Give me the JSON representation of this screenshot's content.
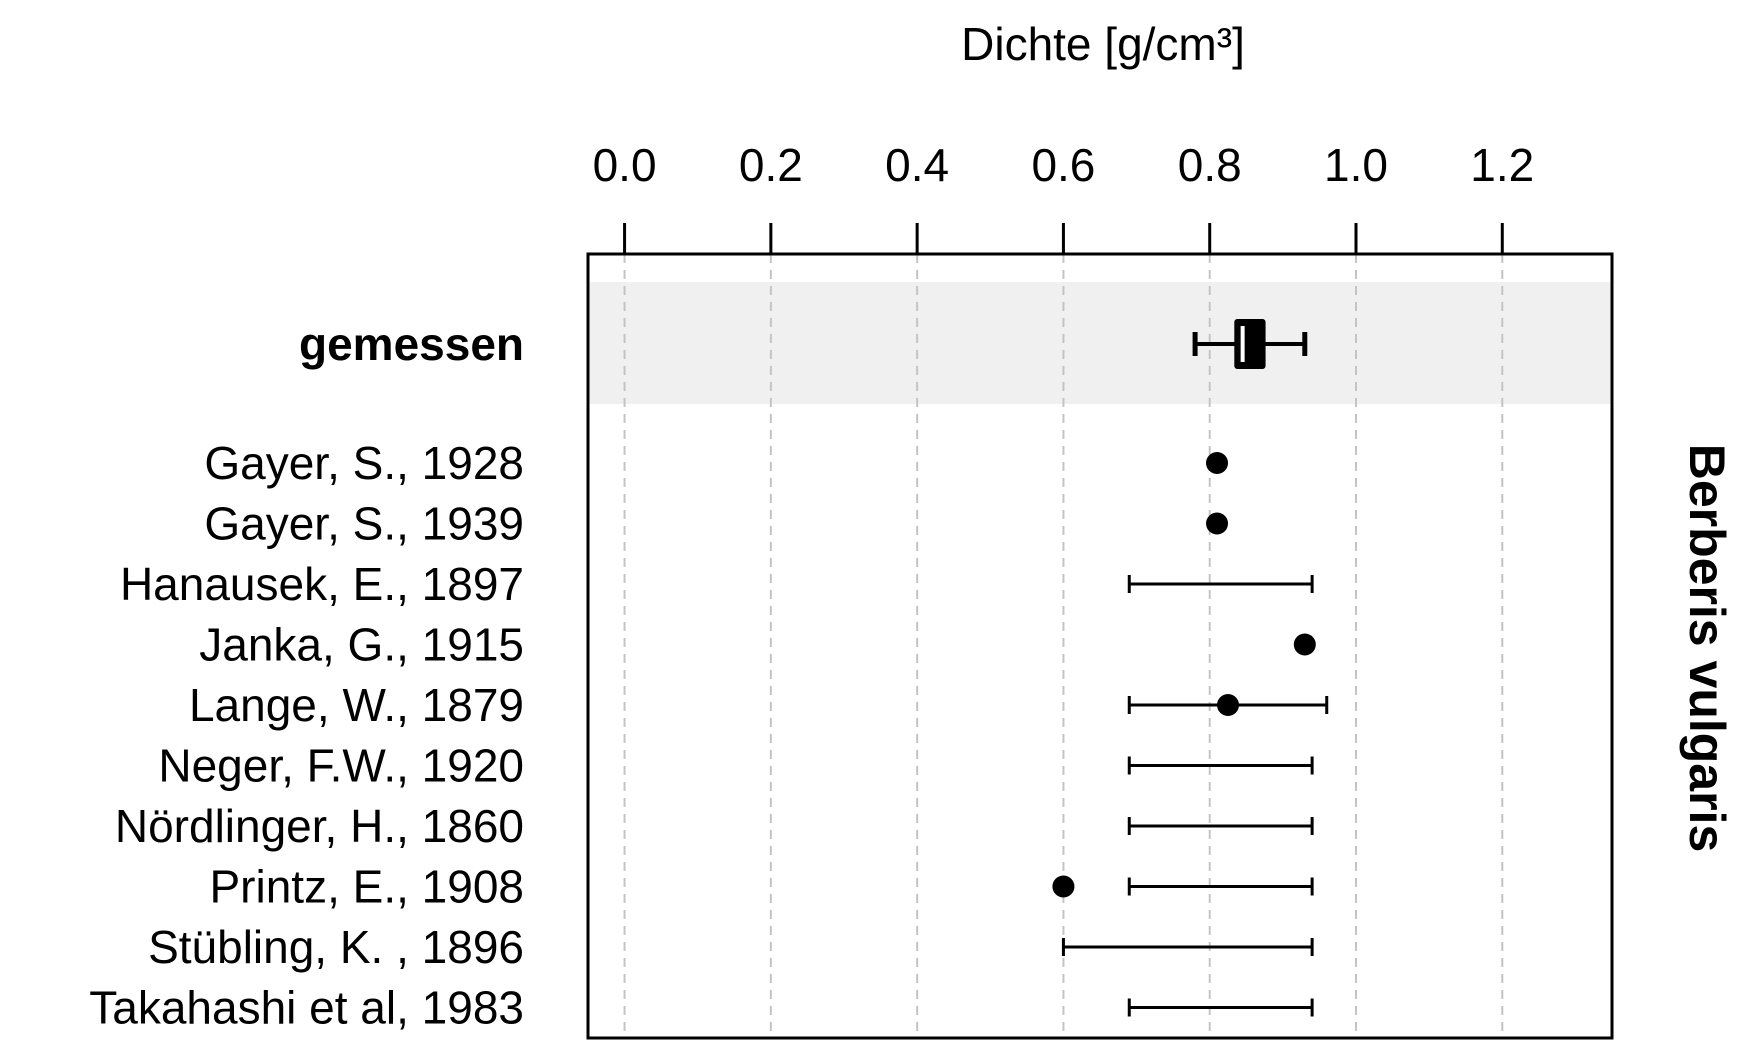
{
  "chart_data": {
    "type": "forest-range",
    "xlabel": "Dichte [g/cm³]",
    "xlim": [
      -0.05,
      1.35
    ],
    "xticks": [
      0.0,
      0.2,
      0.4,
      0.6,
      0.8,
      1.0,
      1.2
    ],
    "xtick_labels": [
      "0.0",
      "0.2",
      "0.4",
      "0.6",
      "0.8",
      "1.0",
      "1.2"
    ],
    "axis_position": "top",
    "grid": "vertical dashed",
    "species_label": "Berberis vulgaris",
    "measured": {
      "label": "gemessen",
      "whisker_low": 0.78,
      "q1": 0.835,
      "median": 0.845,
      "q3": 0.875,
      "whisker_high": 0.93,
      "highlight_color": "#f0f0f0"
    },
    "references": [
      {
        "label": "Gayer, S., 1928",
        "point": 0.81,
        "range": null
      },
      {
        "label": "Gayer, S., 1939",
        "point": 0.81,
        "range": null
      },
      {
        "label": "Hanausek, E., 1897",
        "point": null,
        "range": [
          0.69,
          0.94
        ]
      },
      {
        "label": "Janka, G., 1915",
        "point": 0.93,
        "range": null
      },
      {
        "label": "Lange, W., 1879",
        "point": 0.825,
        "range": [
          0.69,
          0.96
        ]
      },
      {
        "label": "Neger, F.W., 1920",
        "point": null,
        "range": [
          0.69,
          0.94
        ]
      },
      {
        "label": "Nördlinger, H., 1860",
        "point": null,
        "range": [
          0.69,
          0.94
        ]
      },
      {
        "label": "Printz, E., 1908",
        "point": 0.6,
        "range": [
          0.69,
          0.94
        ]
      },
      {
        "label": "Stübling, K. , 1896",
        "point": null,
        "range": [
          0.6,
          0.94
        ]
      },
      {
        "label": "Takahashi et al, 1983",
        "point": null,
        "range": [
          0.69,
          0.94
        ]
      }
    ]
  }
}
